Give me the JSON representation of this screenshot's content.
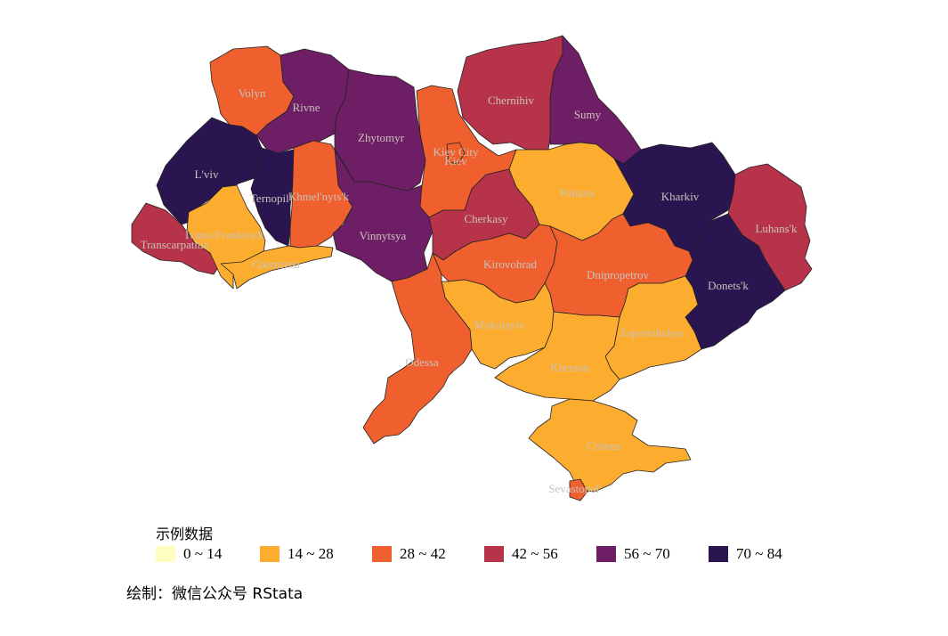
{
  "legend": {
    "title": "示例数据",
    "items": [
      {
        "label": "0 ~ 14",
        "color": "#fcfdbf"
      },
      {
        "label": "14 ~ 28",
        "color": "#fcad2f"
      },
      {
        "label": "28 ~ 42",
        "color": "#f0602e"
      },
      {
        "label": "42 ~ 56",
        "color": "#b6334a"
      },
      {
        "label": "56 ~ 70",
        "color": "#6e1e65"
      },
      {
        "label": "70 ~ 84",
        "color": "#2b1550"
      }
    ]
  },
  "caption": "绘制：微信公众号 RStata",
  "regions": [
    {
      "name": "Volyn",
      "bin": 2
    },
    {
      "name": "Rivne",
      "bin": 4
    },
    {
      "name": "Zhytomyr",
      "bin": 4
    },
    {
      "name": "Kiev",
      "bin": 2
    },
    {
      "name": "Kiev City",
      "bin": 2
    },
    {
      "name": "Chernihiv",
      "bin": 3
    },
    {
      "name": "Sumy",
      "bin": 4
    },
    {
      "name": "L'viv",
      "bin": 5
    },
    {
      "name": "Ternopil'",
      "bin": 5
    },
    {
      "name": "Khmel'nyts'k",
      "bin": 2
    },
    {
      "name": "Transcarpathia",
      "bin": 3
    },
    {
      "name": "Ivano-Frankivs'k",
      "bin": 1
    },
    {
      "name": "Chernivtsi",
      "bin": 1
    },
    {
      "name": "Vinnytsya",
      "bin": 4
    },
    {
      "name": "Cherkasy",
      "bin": 3
    },
    {
      "name": "Poltava",
      "bin": 1
    },
    {
      "name": "Kharkiv",
      "bin": 5
    },
    {
      "name": "Luhans'k",
      "bin": 3
    },
    {
      "name": "Donets'k",
      "bin": 5
    },
    {
      "name": "Kirovohrad",
      "bin": 2
    },
    {
      "name": "Dnipropetrov",
      "bin": 2
    },
    {
      "name": "Zaporizhzhya",
      "bin": 1
    },
    {
      "name": "Mykolayiv",
      "bin": 1
    },
    {
      "name": "Kherson",
      "bin": 1
    },
    {
      "name": "Odessa",
      "bin": 2
    },
    {
      "name": "Crimea",
      "bin": 1
    },
    {
      "name": "Sevastopol'",
      "bin": 2
    }
  ]
}
